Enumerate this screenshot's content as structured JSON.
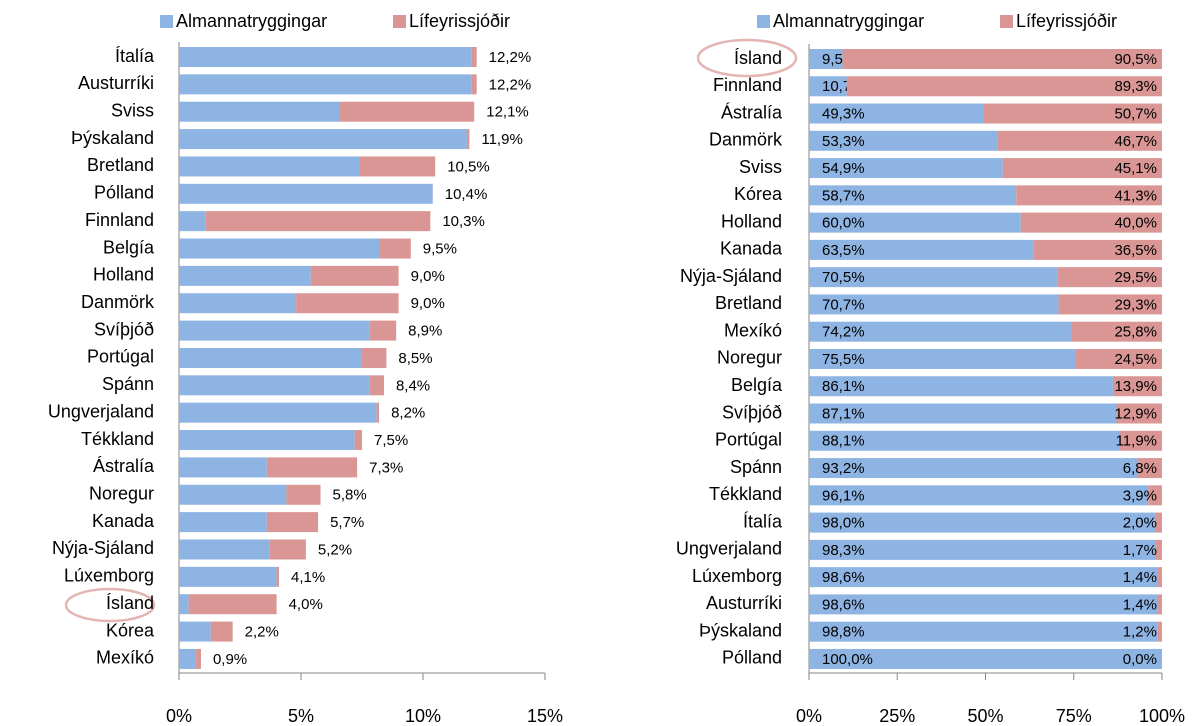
{
  "chart_data": [
    {
      "type": "bar",
      "orientation": "horizontal",
      "stacked": true,
      "categories": [
        "Ítalía",
        "Austurríki",
        "Sviss",
        "Þýskaland",
        "Bretland",
        "Pólland",
        "Finnland",
        "Belgía",
        "Holland",
        "Danmörk",
        "Svíþjóð",
        "Portúgal",
        "Spánn",
        "Ungverjaland",
        "Tékkland",
        "Ástralía",
        "Noregur",
        "Kanada",
        "Nýja-Sjáland",
        "Lúxemborg",
        "Ísland",
        "Kórea",
        "Mexíkó"
      ],
      "series": [
        {
          "name": "Almannatryggingar",
          "color": "#8eb4e3",
          "values": [
            12.0,
            12.0,
            6.6,
            11.8,
            7.4,
            10.4,
            1.1,
            8.2,
            5.4,
            4.8,
            7.8,
            7.5,
            7.8,
            8.1,
            7.2,
            3.6,
            4.4,
            3.6,
            3.7,
            4.0,
            0.4,
            1.3,
            0.7
          ]
        },
        {
          "name": "Lífeyrissjóðir",
          "color": "#d99694",
          "values": [
            0.2,
            0.2,
            5.5,
            0.1,
            3.1,
            0.0,
            9.2,
            1.3,
            3.6,
            4.2,
            1.1,
            1.0,
            0.6,
            0.1,
            0.3,
            3.7,
            1.4,
            2.1,
            1.5,
            0.1,
            3.6,
            0.9,
            0.2
          ]
        }
      ],
      "totals": [
        12.2,
        12.2,
        12.1,
        11.9,
        10.5,
        10.4,
        10.3,
        9.5,
        9.0,
        9.0,
        8.9,
        8.5,
        8.4,
        8.2,
        7.5,
        7.3,
        5.8,
        5.7,
        5.2,
        4.1,
        4.0,
        2.2,
        0.9
      ],
      "total_labels": [
        "12,2%",
        "12,2%",
        "12,1%",
        "11,9%",
        "10,5%",
        "10,4%",
        "10,3%",
        "9,5%",
        "9,0%",
        "9,0%",
        "8,9%",
        "8,5%",
        "8,4%",
        "8,2%",
        "7,5%",
        "7,3%",
        "5,8%",
        "5,7%",
        "5,2%",
        "4,1%",
        "4,0%",
        "2,2%",
        "0,9%"
      ],
      "xlim": [
        0,
        15
      ],
      "xticks": [
        {
          "value": 0,
          "label": "0%"
        },
        {
          "value": 5,
          "label": "5%"
        },
        {
          "value": 10,
          "label": "10%"
        },
        {
          "value": 15,
          "label": "15%"
        }
      ]
    },
    {
      "type": "bar",
      "orientation": "horizontal",
      "stacked": true,
      "categories": [
        "Ísland",
        "Finnland",
        "Ástralía",
        "Danmörk",
        "Sviss",
        "Kórea",
        "Holland",
        "Kanada",
        "Nýja-Sjáland",
        "Bretland",
        "Mexíkó",
        "Noregur",
        "Belgía",
        "Svíþjóð",
        "Portúgal",
        "Spánn",
        "Tékkland",
        "Ítalía",
        "Ungverjaland",
        "Lúxemborg",
        "Austurríki",
        "Þýskaland",
        "Pólland"
      ],
      "series": [
        {
          "name": "Almannatryggingar",
          "color": "#8eb4e3",
          "values": [
            9.5,
            10.7,
            49.3,
            53.3,
            54.9,
            58.7,
            60.0,
            63.5,
            70.5,
            70.7,
            74.2,
            75.5,
            86.1,
            87.1,
            88.1,
            93.2,
            96.1,
            98.0,
            98.3,
            98.6,
            98.6,
            98.8,
            100.0
          ],
          "value_labels": [
            "9,5%",
            "10,7%",
            "49,3%",
            "53,3%",
            "54,9%",
            "58,7%",
            "60,0%",
            "63,5%",
            "70,5%",
            "70,7%",
            "74,2%",
            "75,5%",
            "86,1%",
            "87,1%",
            "88,1%",
            "93,2%",
            "96,1%",
            "98,0%",
            "98,3%",
            "98,6%",
            "98,6%",
            "98,8%",
            "100,0%"
          ]
        },
        {
          "name": "Lífeyrissjóðir",
          "color": "#d99694",
          "values": [
            90.5,
            89.3,
            50.7,
            46.7,
            45.1,
            41.3,
            40.0,
            36.5,
            29.5,
            29.3,
            25.8,
            24.5,
            13.9,
            12.9,
            11.9,
            6.8,
            3.9,
            2.0,
            1.7,
            1.4,
            1.4,
            1.2,
            0.0
          ],
          "value_labels": [
            "90,5%",
            "89,3%",
            "50,7%",
            "46,7%",
            "45,1%",
            "41,3%",
            "40,0%",
            "36,5%",
            "29,5%",
            "29,3%",
            "25,8%",
            "24,5%",
            "13,9%",
            "12,9%",
            "11,9%",
            "6,8%",
            "3,9%",
            "2,0%",
            "1,7%",
            "1,4%",
            "1,4%",
            "1,2%",
            "0,0%"
          ]
        }
      ],
      "xlim": [
        0,
        100
      ],
      "xticks": [
        {
          "value": 0,
          "label": "0%"
        },
        {
          "value": 25,
          "label": "25%"
        },
        {
          "value": 50,
          "label": "50%"
        },
        {
          "value": 75,
          "label": "75%"
        },
        {
          "value": 100,
          "label": "100%"
        }
      ]
    }
  ]
}
